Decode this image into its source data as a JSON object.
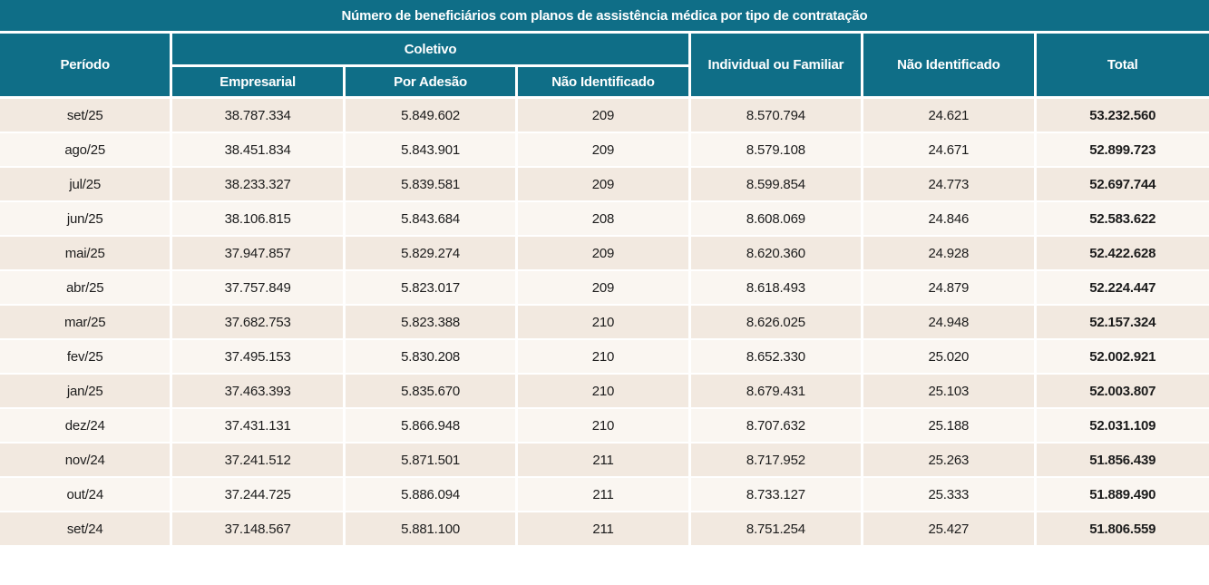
{
  "colors": {
    "header_teal": "#0f6e87",
    "row_odd": "#f2e9e0",
    "row_even": "#faf6f1",
    "text_dark": "#1c1c1c",
    "sep_white": "#ffffff"
  },
  "chart_data": {
    "type": "table",
    "title": "Número de beneficiários com planos de assistência médica por tipo de contratação",
    "header": {
      "period_label": "Período",
      "group_label": "Coletivo",
      "group_columns": [
        "Empresarial",
        "Por Adesão",
        "Não Identificado"
      ],
      "single_columns": [
        "Individual ou Familiar",
        "Não Identificado",
        "Total"
      ]
    },
    "row_fields": [
      "period",
      "empresarial",
      "por_adesao",
      "coletivo_nao_identificado",
      "individual_ou_familiar",
      "nao_identificado",
      "total"
    ],
    "rows": [
      {
        "period": "set/25",
        "empresarial": "38.787.334",
        "por_adesao": "5.849.602",
        "coletivo_nao_identificado": "209",
        "individual_ou_familiar": "8.570.794",
        "nao_identificado": "24.621",
        "total": "53.232.560"
      },
      {
        "period": "ago/25",
        "empresarial": "38.451.834",
        "por_adesao": "5.843.901",
        "coletivo_nao_identificado": "209",
        "individual_ou_familiar": "8.579.108",
        "nao_identificado": "24.671",
        "total": "52.899.723"
      },
      {
        "period": "jul/25",
        "empresarial": "38.233.327",
        "por_adesao": "5.839.581",
        "coletivo_nao_identificado": "209",
        "individual_ou_familiar": "8.599.854",
        "nao_identificado": "24.773",
        "total": "52.697.744"
      },
      {
        "period": "jun/25",
        "empresarial": "38.106.815",
        "por_adesao": "5.843.684",
        "coletivo_nao_identificado": "208",
        "individual_ou_familiar": "8.608.069",
        "nao_identificado": "24.846",
        "total": "52.583.622"
      },
      {
        "period": "mai/25",
        "empresarial": "37.947.857",
        "por_adesao": "5.829.274",
        "coletivo_nao_identificado": "209",
        "individual_ou_familiar": "8.620.360",
        "nao_identificado": "24.928",
        "total": "52.422.628"
      },
      {
        "period": "abr/25",
        "empresarial": "37.757.849",
        "por_adesao": "5.823.017",
        "coletivo_nao_identificado": "209",
        "individual_ou_familiar": "8.618.493",
        "nao_identificado": "24.879",
        "total": "52.224.447"
      },
      {
        "period": "mar/25",
        "empresarial": "37.682.753",
        "por_adesao": "5.823.388",
        "coletivo_nao_identificado": "210",
        "individual_ou_familiar": "8.626.025",
        "nao_identificado": "24.948",
        "total": "52.157.324"
      },
      {
        "period": "fev/25",
        "empresarial": "37.495.153",
        "por_adesao": "5.830.208",
        "coletivo_nao_identificado": "210",
        "individual_ou_familiar": "8.652.330",
        "nao_identificado": "25.020",
        "total": "52.002.921"
      },
      {
        "period": "jan/25",
        "empresarial": "37.463.393",
        "por_adesao": "5.835.670",
        "coletivo_nao_identificado": "210",
        "individual_ou_familiar": "8.679.431",
        "nao_identificado": "25.103",
        "total": "52.003.807"
      },
      {
        "period": "dez/24",
        "empresarial": "37.431.131",
        "por_adesao": "5.866.948",
        "coletivo_nao_identificado": "210",
        "individual_ou_familiar": "8.707.632",
        "nao_identificado": "25.188",
        "total": "52.031.109"
      },
      {
        "period": "nov/24",
        "empresarial": "37.241.512",
        "por_adesao": "5.871.501",
        "coletivo_nao_identificado": "211",
        "individual_ou_familiar": "8.717.952",
        "nao_identificado": "25.263",
        "total": "51.856.439"
      },
      {
        "period": "out/24",
        "empresarial": "37.244.725",
        "por_adesao": "5.886.094",
        "coletivo_nao_identificado": "211",
        "individual_ou_familiar": "8.733.127",
        "nao_identificado": "25.333",
        "total": "51.889.490"
      },
      {
        "period": "set/24",
        "empresarial": "37.148.567",
        "por_adesao": "5.881.100",
        "coletivo_nao_identificado": "211",
        "individual_ou_familiar": "8.751.254",
        "nao_identificado": "25.427",
        "total": "51.806.559"
      }
    ]
  }
}
